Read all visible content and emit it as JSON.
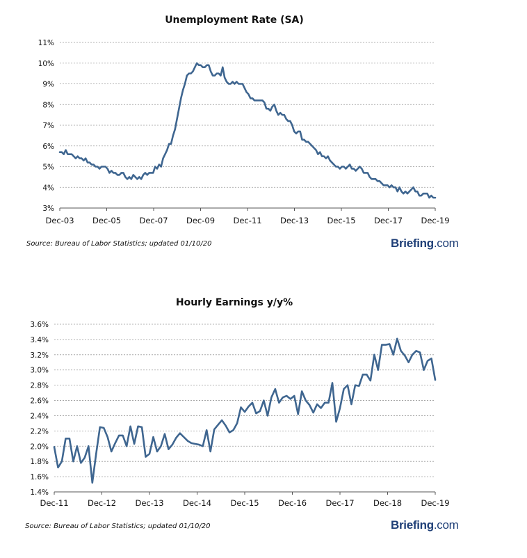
{
  "charts": [
    {
      "title": "Unemployment Rate (SA)",
      "source": "Source: Bureau of Labor Statistics; updated 01/10/20",
      "logo": {
        "brand": "Briefing",
        "tld": ".com"
      }
    },
    {
      "title": "Hourly Earnings y/y%",
      "source": "Source: Bureau of Labor Statistics; updated 01/10/20",
      "logo": {
        "brand": "Briefing",
        "tld": ".com"
      }
    }
  ],
  "colors": {
    "line": "#3f6690",
    "grid": "#9a9a9a",
    "logo": "#1f3f77"
  },
  "chart_data": [
    {
      "type": "line",
      "title": "Unemployment Rate (SA)",
      "xlabel": "",
      "ylabel": "",
      "ylim": [
        3,
        11
      ],
      "yticks": [
        "3%",
        "4%",
        "5%",
        "6%",
        "7%",
        "8%",
        "9%",
        "10%",
        "11%"
      ],
      "xticks": [
        "Dec-03",
        "Dec-05",
        "Dec-07",
        "Dec-09",
        "Dec-11",
        "Dec-13",
        "Dec-15",
        "Dec-17",
        "Dec-19"
      ],
      "x_start": "Dec-03",
      "frequency": "monthly",
      "series": [
        {
          "name": "Unemployment Rate",
          "values": [
            5.7,
            5.7,
            5.6,
            5.8,
            5.6,
            5.6,
            5.6,
            5.5,
            5.4,
            5.5,
            5.4,
            5.4,
            5.3,
            5.4,
            5.2,
            5.2,
            5.1,
            5.1,
            5.0,
            5.0,
            4.9,
            5.0,
            5.0,
            5.0,
            4.9,
            4.7,
            4.8,
            4.7,
            4.7,
            4.6,
            4.6,
            4.7,
            4.7,
            4.5,
            4.4,
            4.5,
            4.4,
            4.6,
            4.5,
            4.4,
            4.5,
            4.4,
            4.6,
            4.7,
            4.6,
            4.7,
            4.7,
            4.7,
            5.0,
            4.9,
            5.1,
            5.0,
            5.4,
            5.6,
            5.8,
            6.1,
            6.1,
            6.5,
            6.8,
            7.3,
            7.8,
            8.3,
            8.7,
            9.0,
            9.4,
            9.5,
            9.5,
            9.6,
            9.8,
            10.0,
            9.9,
            9.9,
            9.8,
            9.8,
            9.9,
            9.9,
            9.6,
            9.4,
            9.4,
            9.5,
            9.5,
            9.4,
            9.8,
            9.3,
            9.1,
            9.0,
            9.0,
            9.1,
            9.0,
            9.1,
            9.0,
            9.0,
            9.0,
            8.8,
            8.6,
            8.5,
            8.3,
            8.3,
            8.2,
            8.2,
            8.2,
            8.2,
            8.2,
            8.1,
            7.8,
            7.8,
            7.7,
            7.9,
            8.0,
            7.7,
            7.5,
            7.6,
            7.5,
            7.5,
            7.3,
            7.2,
            7.2,
            7.0,
            6.7,
            6.6,
            6.7,
            6.7,
            6.3,
            6.3,
            6.2,
            6.2,
            6.1,
            6.0,
            5.9,
            5.8,
            5.6,
            5.7,
            5.5,
            5.5,
            5.4,
            5.5,
            5.3,
            5.2,
            5.1,
            5.0,
            5.0,
            4.9,
            5.0,
            5.0,
            4.9,
            5.0,
            5.1,
            4.9,
            4.9,
            4.8,
            4.9,
            5.0,
            4.9,
            4.7,
            4.7,
            4.7,
            4.5,
            4.4,
            4.4,
            4.4,
            4.3,
            4.3,
            4.2,
            4.1,
            4.1,
            4.1,
            4.0,
            4.1,
            4.0,
            4.0,
            3.8,
            4.0,
            3.8,
            3.7,
            3.8,
            3.7,
            3.8,
            3.9,
            4.0,
            3.8,
            3.8,
            3.6,
            3.6,
            3.7,
            3.7,
            3.7,
            3.5,
            3.6,
            3.5,
            3.5
          ]
        }
      ]
    },
    {
      "type": "line",
      "title": "Hourly Earnings y/y%",
      "xlabel": "",
      "ylabel": "",
      "ylim": [
        1.4,
        3.6
      ],
      "yticks": [
        "1.4%",
        "1.6%",
        "1.8%",
        "2.0%",
        "2.2%",
        "2.4%",
        "2.6%",
        "2.8%",
        "3.0%",
        "3.2%",
        "3.4%",
        "3.6%"
      ],
      "xticks": [
        "Dec-11",
        "Dec-12",
        "Dec-13",
        "Dec-14",
        "Dec-15",
        "Dec-16",
        "Dec-17",
        "Dec-18",
        "Dec-19"
      ],
      "x_start": "Dec-11",
      "frequency": "monthly",
      "series": [
        {
          "name": "Hourly Earnings y/y%",
          "values": [
            1.99,
            1.72,
            1.8,
            2.1,
            2.1,
            1.8,
            2.0,
            1.78,
            1.85,
            2.0,
            1.52,
            1.9,
            2.25,
            2.24,
            2.12,
            1.93,
            2.04,
            2.14,
            2.14,
            2.0,
            2.26,
            2.03,
            2.26,
            2.25,
            1.86,
            1.9,
            2.12,
            1.93,
            2.0,
            2.16,
            1.96,
            2.02,
            2.11,
            2.17,
            2.12,
            2.07,
            2.04,
            2.03,
            2.02,
            2.0,
            2.21,
            1.93,
            2.22,
            2.28,
            2.34,
            2.27,
            2.18,
            2.21,
            2.3,
            2.51,
            2.45,
            2.52,
            2.57,
            2.43,
            2.46,
            2.6,
            2.4,
            2.64,
            2.75,
            2.57,
            2.64,
            2.66,
            2.62,
            2.66,
            2.42,
            2.72,
            2.6,
            2.54,
            2.44,
            2.55,
            2.5,
            2.57,
            2.57,
            2.83,
            2.32,
            2.5,
            2.75,
            2.8,
            2.55,
            2.8,
            2.79,
            2.94,
            2.94,
            2.86,
            3.2,
            3.0,
            3.33,
            3.33,
            3.34,
            3.2,
            3.41,
            3.25,
            3.19,
            3.1,
            3.2,
            3.25,
            3.23,
            3.0,
            3.12,
            3.15,
            2.87
          ]
        }
      ]
    }
  ]
}
